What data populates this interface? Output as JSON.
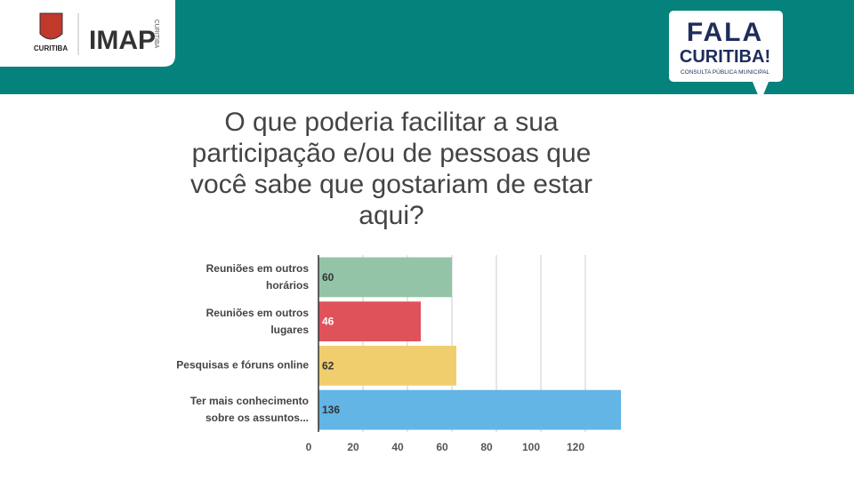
{
  "header": {
    "left_logo_text": "CURITIBA",
    "imap_text": "IMAP",
    "imap_sub": "CURITIBA",
    "right_logo_line1": "FALA",
    "right_logo_line2": "CURITIBA!",
    "right_logo_line3": "CONSULTA PÚBLICA MUNICIPAL"
  },
  "chart_data": {
    "type": "barh",
    "title": "O que poderia facilitar a sua participação e/ou de pessoas que você sabe que gostariam de estar aqui?",
    "categories": [
      "Reuniões em outros horários",
      "Reuniões em outros lugares",
      "Pesquisas e fóruns online",
      "Ter mais conhecimento sobre os assuntos..."
    ],
    "values": [
      60,
      46,
      62,
      136
    ],
    "colors": [
      "#93c4a8",
      "#e0525a",
      "#f0ce6e",
      "#62b5e5"
    ],
    "label_colors": [
      "#333333",
      "#ffffff",
      "#333333",
      "#333333"
    ],
    "xlim": [
      0,
      140
    ],
    "xticks": [
      0,
      20,
      40,
      60,
      80,
      100,
      120
    ],
    "grid": true
  }
}
